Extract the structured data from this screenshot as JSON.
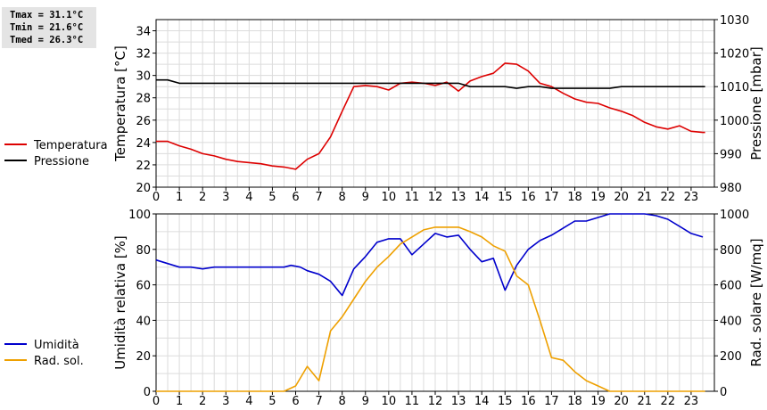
{
  "stats": {
    "tmax": "Tmax = 31.1°C",
    "tmin": "Tmin = 21.6°C",
    "tmed": "Tmed = 26.3°C"
  },
  "chart_data": [
    {
      "type": "line",
      "x_ticks": [
        0,
        1,
        2,
        3,
        4,
        5,
        6,
        7,
        8,
        9,
        10,
        11,
        12,
        13,
        14,
        15,
        16,
        17,
        18,
        19,
        20,
        21,
        22,
        23
      ],
      "xlim": [
        0,
        24
      ],
      "grid": true,
      "legend_placement": "left",
      "left_axis": {
        "label": "Temperatura [°C]",
        "ylim": [
          20,
          35
        ],
        "ticks": [
          20,
          22,
          24,
          26,
          28,
          30,
          32,
          34
        ]
      },
      "right_axis": {
        "label": "Pressione [mbar]",
        "ylim": [
          980,
          1030
        ],
        "ticks": [
          980,
          990,
          1000,
          1010,
          1020,
          1030
        ]
      },
      "series": [
        {
          "name": "Temperatura",
          "axis": "left",
          "color": "#dd0000",
          "points": [
            [
              0,
              24.1
            ],
            [
              0.5,
              24.1
            ],
            [
              1,
              23.7
            ],
            [
              1.5,
              23.4
            ],
            [
              2,
              23.0
            ],
            [
              2.5,
              22.8
            ],
            [
              3,
              22.5
            ],
            [
              3.5,
              22.3
            ],
            [
              4,
              22.2
            ],
            [
              4.5,
              22.1
            ],
            [
              5,
              21.9
            ],
            [
              5.5,
              21.8
            ],
            [
              6,
              21.6
            ],
            [
              6.5,
              22.5
            ],
            [
              7,
              23.0
            ],
            [
              7.5,
              24.5
            ],
            [
              8,
              26.8
            ],
            [
              8.5,
              29.0
            ],
            [
              9,
              29.1
            ],
            [
              9.5,
              29.0
            ],
            [
              10,
              28.7
            ],
            [
              10.5,
              29.3
            ],
            [
              11,
              29.4
            ],
            [
              11.5,
              29.3
            ],
            [
              12,
              29.1
            ],
            [
              12.5,
              29.4
            ],
            [
              13,
              28.6
            ],
            [
              13.5,
              29.5
            ],
            [
              14,
              29.9
            ],
            [
              14.5,
              30.2
            ],
            [
              15,
              31.1
            ],
            [
              15.5,
              31.0
            ],
            [
              16,
              30.4
            ],
            [
              16.5,
              29.3
            ],
            [
              17,
              29.0
            ],
            [
              17.5,
              28.4
            ],
            [
              18,
              27.9
            ],
            [
              18.5,
              27.6
            ],
            [
              19,
              27.5
            ],
            [
              19.5,
              27.1
            ],
            [
              20,
              26.8
            ],
            [
              20.5,
              26.4
            ],
            [
              21,
              25.8
            ],
            [
              21.5,
              25.4
            ],
            [
              22,
              25.2
            ],
            [
              22.5,
              25.5
            ],
            [
              23,
              25.0
            ],
            [
              23.5,
              24.9
            ],
            [
              23.6,
              24.9
            ]
          ]
        },
        {
          "name": "Pressione",
          "axis": "right",
          "color": "#000000",
          "points": [
            [
              0,
              1012
            ],
            [
              0.5,
              1012
            ],
            [
              1,
              1011
            ],
            [
              6,
              1011
            ],
            [
              8.5,
              1011
            ],
            [
              10,
              1011
            ],
            [
              13,
              1011
            ],
            [
              13.5,
              1010
            ],
            [
              15,
              1010
            ],
            [
              15.5,
              1009.5
            ],
            [
              16,
              1010
            ],
            [
              16.5,
              1010
            ],
            [
              17,
              1009.5
            ],
            [
              19.5,
              1009.5
            ],
            [
              20,
              1010
            ],
            [
              23.6,
              1010
            ]
          ]
        }
      ]
    },
    {
      "type": "line",
      "x_ticks": [
        0,
        1,
        2,
        3,
        4,
        5,
        6,
        7,
        8,
        9,
        10,
        11,
        12,
        13,
        14,
        15,
        16,
        17,
        18,
        19,
        20,
        21,
        22,
        23
      ],
      "xlim": [
        0,
        24
      ],
      "grid": true,
      "legend_placement": "left",
      "left_axis": {
        "label": "Umidità relativa [%]",
        "ylim": [
          0,
          100
        ],
        "ticks": [
          0,
          20,
          40,
          60,
          80,
          100
        ]
      },
      "right_axis": {
        "label": "Rad. solare [W/mq]",
        "ylim": [
          0,
          1000
        ],
        "ticks": [
          0,
          200,
          400,
          600,
          800,
          1000
        ]
      },
      "series": [
        {
          "name": "Umidità",
          "axis": "left",
          "color": "#0000cc",
          "points": [
            [
              0,
              74
            ],
            [
              0.5,
              72
            ],
            [
              1,
              70
            ],
            [
              1.5,
              70
            ],
            [
              2,
              69
            ],
            [
              2.5,
              70
            ],
            [
              3,
              70
            ],
            [
              4,
              70
            ],
            [
              5,
              70
            ],
            [
              5.5,
              70
            ],
            [
              5.8,
              71
            ],
            [
              6.2,
              70
            ],
            [
              6.5,
              68
            ],
            [
              7,
              66
            ],
            [
              7.5,
              62
            ],
            [
              8,
              54
            ],
            [
              8.5,
              69
            ],
            [
              9,
              76
            ],
            [
              9.5,
              84
            ],
            [
              10,
              86
            ],
            [
              10.5,
              86
            ],
            [
              11,
              77
            ],
            [
              11.5,
              83
            ],
            [
              12,
              89
            ],
            [
              12.5,
              87
            ],
            [
              13,
              88
            ],
            [
              13.5,
              80
            ],
            [
              14,
              73
            ],
            [
              14.5,
              75
            ],
            [
              15,
              57
            ],
            [
              15.5,
              71
            ],
            [
              16,
              80
            ],
            [
              16.5,
              85
            ],
            [
              17,
              88
            ],
            [
              17.5,
              92
            ],
            [
              18,
              96
            ],
            [
              18.5,
              96
            ],
            [
              19,
              98
            ],
            [
              19.5,
              100
            ],
            [
              20,
              100
            ],
            [
              21,
              100
            ],
            [
              21.5,
              99
            ],
            [
              22,
              97
            ],
            [
              22.5,
              93
            ],
            [
              23,
              89
            ],
            [
              23.5,
              87
            ]
          ]
        },
        {
          "name": "Rad. sol.",
          "axis": "right",
          "color": "#eea000",
          "points": [
            [
              0,
              0
            ],
            [
              5.5,
              0
            ],
            [
              6,
              30
            ],
            [
              6.5,
              140
            ],
            [
              7,
              60
            ],
            [
              7.5,
              340
            ],
            [
              8,
              420
            ],
            [
              8.5,
              520
            ],
            [
              9,
              620
            ],
            [
              9.5,
              700
            ],
            [
              10,
              760
            ],
            [
              10.5,
              830
            ],
            [
              11,
              870
            ],
            [
              11.5,
              910
            ],
            [
              12,
              925
            ],
            [
              12.5,
              925
            ],
            [
              13,
              925
            ],
            [
              13.5,
              900
            ],
            [
              14,
              870
            ],
            [
              14.5,
              820
            ],
            [
              15,
              790
            ],
            [
              15.5,
              650
            ],
            [
              16,
              600
            ],
            [
              16.5,
              400
            ],
            [
              17,
              190
            ],
            [
              17.5,
              175
            ],
            [
              18,
              110
            ],
            [
              18.5,
              60
            ],
            [
              19,
              30
            ],
            [
              19.5,
              0
            ],
            [
              23.6,
              0
            ]
          ]
        }
      ]
    }
  ]
}
